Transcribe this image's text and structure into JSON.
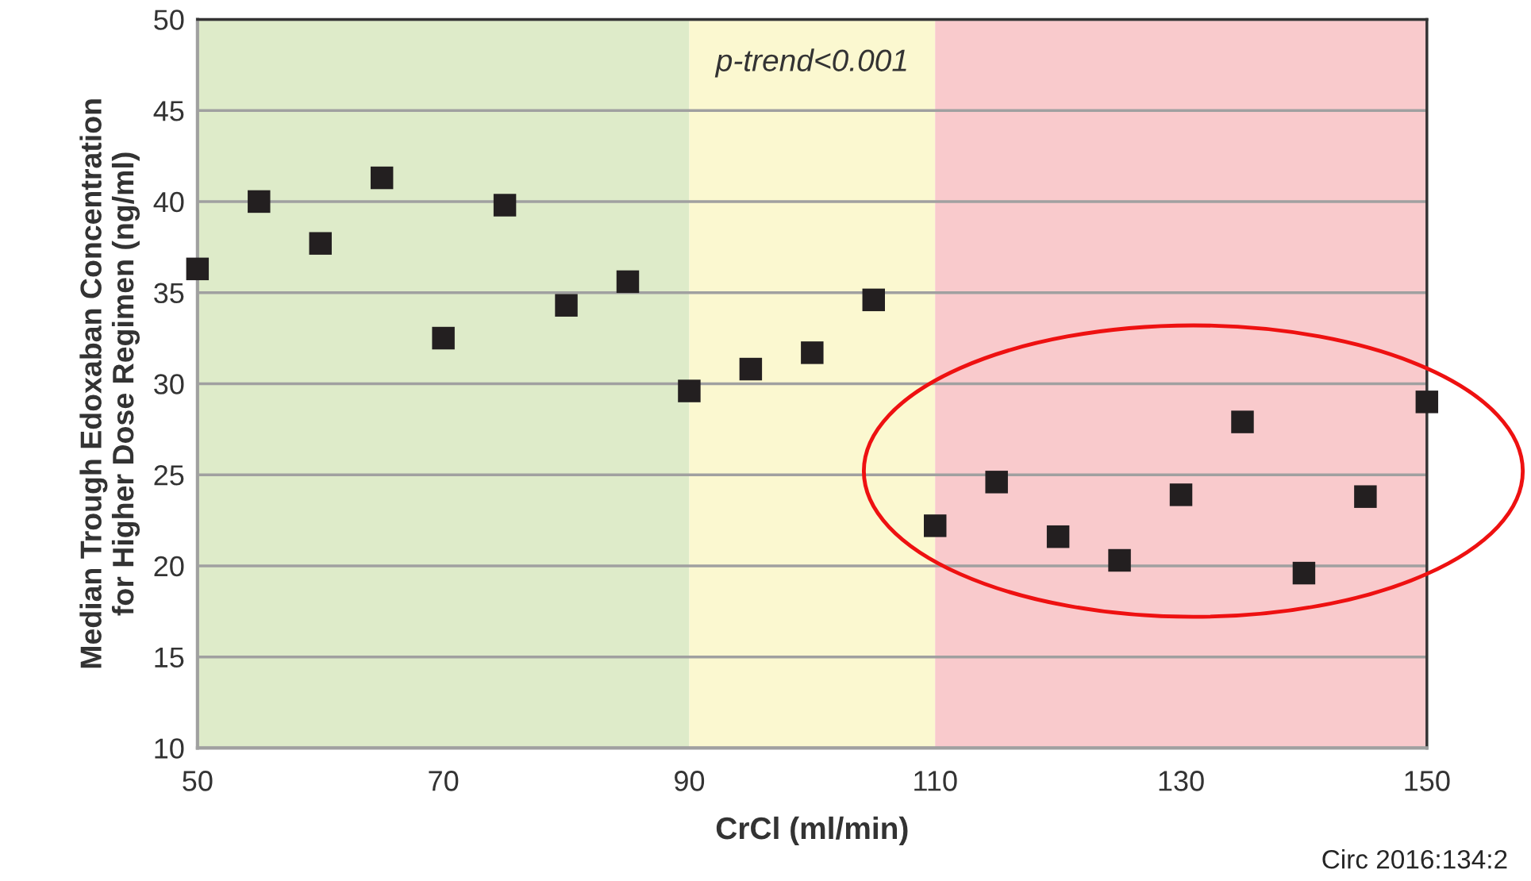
{
  "chart_data": {
    "type": "scatter",
    "xlabel": "CrCl (ml/min)",
    "ylabel": "Median Trough Edoxaban Concentration\nfor Higher Dose Regimen (ng/ml)",
    "x": [
      50,
      55,
      60,
      65,
      70,
      75,
      80,
      85,
      90,
      95,
      100,
      105,
      110,
      115,
      120,
      125,
      130,
      135,
      140,
      145,
      150
    ],
    "series": [
      {
        "color": "#231f20",
        "values": [
          36.3,
          40.0,
          37.7,
          41.3,
          32.5,
          39.8,
          34.3,
          35.6,
          29.6,
          30.8,
          31.7,
          34.6,
          22.2,
          24.6,
          21.6,
          20.3,
          23.9,
          27.9,
          19.6,
          23.8,
          29.0
        ]
      }
    ],
    "marker": "square",
    "xlim": [
      50,
      150
    ],
    "xticks": [
      50,
      70,
      90,
      110,
      130,
      150
    ],
    "ylim": [
      10,
      50
    ],
    "yticks": [
      10,
      15,
      20,
      25,
      30,
      35,
      40,
      45,
      50
    ],
    "grid": "y",
    "legend": false,
    "bands": [
      {
        "axis": "x",
        "from": 50,
        "to": 90,
        "color": "#deebc9"
      },
      {
        "axis": "x",
        "from": 90,
        "to": 110,
        "color": "#fbf8d0"
      },
      {
        "axis": "x",
        "from": 110,
        "to": 150,
        "color": "#f9cacc"
      }
    ],
    "annotations": [
      "p-trend<0.001",
      "Circ 2016:134:2"
    ]
  }
}
